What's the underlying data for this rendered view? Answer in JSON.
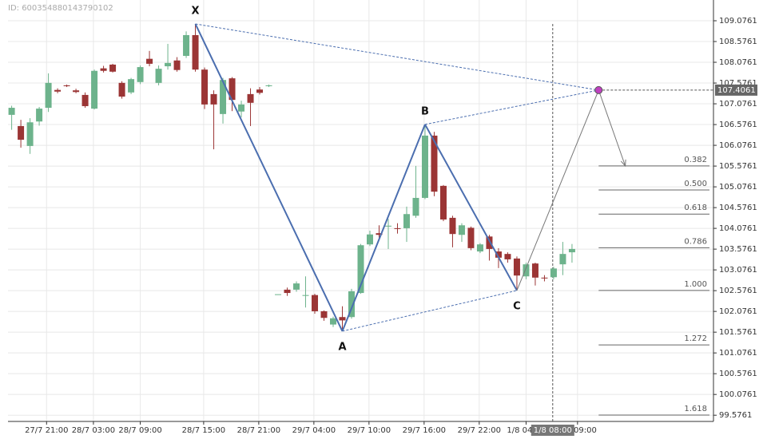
{
  "chart_data": {
    "type": "candlestick",
    "id_text": "ID: 600354880143790102",
    "xlim": [
      -0.4,
      76.4
    ],
    "ylim": [
      99.4261,
      109.5761
    ],
    "grid": true,
    "up_color": "#6db38c",
    "down_color": "#9b3535",
    "x": [
      0,
      1,
      2,
      3,
      4,
      5,
      6,
      7,
      8,
      9,
      10,
      11,
      12,
      13,
      14,
      15,
      16,
      17,
      18,
      19,
      20,
      21,
      22,
      23,
      24,
      25,
      26,
      27,
      28,
      29,
      30,
      31,
      32,
      33,
      34,
      35,
      36,
      37,
      38,
      39,
      40,
      41,
      42,
      43,
      44,
      45,
      46,
      47,
      48,
      49,
      50,
      51,
      52,
      53,
      54,
      55,
      56,
      57,
      58,
      59,
      60,
      61
    ],
    "open": [
      106.81,
      106.54,
      106.06,
      106.65,
      106.98,
      107.41,
      107.52,
      107.4,
      107.29,
      106.96,
      107.93,
      108.02,
      107.58,
      107.35,
      107.6,
      108.16,
      107.58,
      107.98,
      108.12,
      108.23,
      108.73,
      107.9,
      107.31,
      106.83,
      107.69,
      106.89,
      107.31,
      107.42,
      107.5,
      102.49,
      102.6,
      102.6,
      102.45,
      102.47,
      102.08,
      101.76,
      101.94,
      101.94,
      102.52,
      103.69,
      103.96,
      104.12,
      104.08,
      104.08,
      104.38,
      104.81,
      106.31,
      105.1,
      104.33,
      103.92,
      104.09,
      103.52,
      103.88,
      103.52,
      103.46,
      103.35,
      102.92,
      103.23,
      102.89,
      102.9,
      103.21,
      103.5
    ],
    "high": [
      107.03,
      106.69,
      106.73,
      107.0,
      107.81,
      107.45,
      107.54,
      107.44,
      107.35,
      107.9,
      107.99,
      108.04,
      107.62,
      107.7,
      108.0,
      108.35,
      108.0,
      108.52,
      108.2,
      108.82,
      109.0,
      107.95,
      107.4,
      107.7,
      107.72,
      107.15,
      107.45,
      107.48,
      107.54,
      102.49,
      102.65,
      102.8,
      102.92,
      102.5,
      102.1,
      101.95,
      102.2,
      102.62,
      103.7,
      104.02,
      104.15,
      104.3,
      104.2,
      104.6,
      105.58,
      106.58,
      106.4,
      105.12,
      104.38,
      104.2,
      104.12,
      103.72,
      103.92,
      103.6,
      103.5,
      103.4,
      103.25,
      103.25,
      102.95,
      103.15,
      103.75,
      103.7
    ],
    "low": [
      106.45,
      106.02,
      105.87,
      106.55,
      106.88,
      107.33,
      107.48,
      107.33,
      106.98,
      106.94,
      107.83,
      107.83,
      107.2,
      107.31,
      107.55,
      107.98,
      107.52,
      107.9,
      107.85,
      108.18,
      107.85,
      106.95,
      105.98,
      106.6,
      106.9,
      106.75,
      106.54,
      107.3,
      107.48,
      102.49,
      102.45,
      102.55,
      102.17,
      102.02,
      101.85,
      101.7,
      101.6,
      101.9,
      102.5,
      103.65,
      103.85,
      103.58,
      103.95,
      103.75,
      104.33,
      104.78,
      104.85,
      104.25,
      103.62,
      103.75,
      103.55,
      103.48,
      103.3,
      103.12,
      103.25,
      102.58,
      102.85,
      102.7,
      102.8,
      102.85,
      102.95,
      103.25
    ],
    "close": [
      106.98,
      106.21,
      106.63,
      106.96,
      107.58,
      107.37,
      107.5,
      107.36,
      107.02,
      107.87,
      107.87,
      107.85,
      107.25,
      107.67,
      107.96,
      108.04,
      107.92,
      108.06,
      107.89,
      108.73,
      107.9,
      107.06,
      107.06,
      107.65,
      107.17,
      107.06,
      107.1,
      107.34,
      107.52,
      102.49,
      102.52,
      102.75,
      102.47,
      102.08,
      101.92,
      101.91,
      101.86,
      102.56,
      103.67,
      103.93,
      103.92,
      104.14,
      104.06,
      104.42,
      104.81,
      106.31,
      104.96,
      104.29,
      103.94,
      104.15,
      103.6,
      103.69,
      103.58,
      103.37,
      103.33,
      102.94,
      103.21,
      102.89,
      102.87,
      103.11,
      103.46,
      103.58
    ],
    "xticks": [
      {
        "value": 3.8,
        "label": "27/7 21:00"
      },
      {
        "value": 8.9,
        "label": "28/7 03:00"
      },
      {
        "value": 14.0,
        "label": "28/7 09:00"
      },
      {
        "value": 20.9,
        "label": "28/7 15:00"
      },
      {
        "value": 26.9,
        "label": "28/7 21:00"
      },
      {
        "value": 32.9,
        "label": "29/7 04:00"
      },
      {
        "value": 38.9,
        "label": "29/7 10:00"
      },
      {
        "value": 44.9,
        "label": "29/7 16:00"
      },
      {
        "value": 50.9,
        "label": "29/7 22:00"
      },
      {
        "value": 56.0,
        "label": "1/8 04:00"
      },
      {
        "value": 61.6,
        "label": "1/8 09:00"
      }
    ],
    "yticks": [
      109.0761,
      108.5761,
      108.0761,
      107.5761,
      107.0761,
      106.5761,
      106.0761,
      105.5761,
      105.0761,
      104.5761,
      104.0761,
      103.5761,
      103.0761,
      102.5761,
      102.0761,
      101.5761,
      101.0761,
      100.5761,
      100.0761,
      99.5761
    ],
    "crosshair": {
      "x": 58.9,
      "label": "1/8 08:00"
    },
    "pattern": {
      "points": [
        {
          "label": "X",
          "x": 20,
          "y": 109.0
        },
        {
          "label": "A",
          "x": 36,
          "y": 101.6
        },
        {
          "label": "B",
          "x": 45,
          "y": 106.58
        },
        {
          "label": "C",
          "x": 55,
          "y": 102.58
        }
      ],
      "d": {
        "x": 63.9,
        "y": 107.4061
      },
      "target": {
        "x": 66.8,
        "y": 105.58
      }
    },
    "fib_levels": [
      {
        "ratio": 0.382,
        "price": 105.58
      },
      {
        "ratio": {
          "value": 0.5,
          "label": "0.500"
        },
        "price": 105.0
      },
      {
        "ratio": 0.618,
        "price": 104.42
      },
      {
        "ratio": 0.786,
        "price": 103.61
      },
      {
        "ratio": {
          "value": 1,
          "label": "1.000"
        },
        "price": 102.58
      },
      {
        "ratio": 1.272,
        "price": 101.27
      },
      {
        "ratio": 1.618,
        "price": 99.58
      }
    ]
  }
}
